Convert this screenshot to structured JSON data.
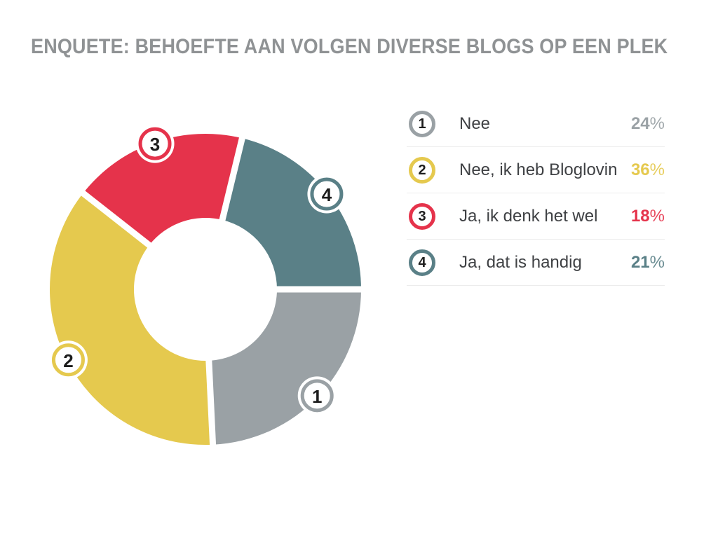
{
  "chart_data": {
    "type": "pie",
    "subtype": "donut",
    "title": "ENQUETE: BEHOEFTE AAN VOLGEN DIVERSE BLOGS OP EEN PLEK",
    "unit": "%",
    "percent_suffix": "%",
    "start_angle_deg": 0,
    "direction": "clockwise",
    "legend_position": "right",
    "hole_ratio": 0.46,
    "slices": [
      {
        "id": "1",
        "label": "Nee",
        "value": 24,
        "color": "#9AA1A5"
      },
      {
        "id": "2",
        "label": "Nee, ik heb Bloglovin",
        "value": 36,
        "color": "#E5C94E"
      },
      {
        "id": "3",
        "label": "Ja, ik denk het wel",
        "value": 18,
        "color": "#E5334B"
      },
      {
        "id": "4",
        "label": "Ja, dat is handig",
        "value": 21,
        "color": "#5A8087"
      }
    ]
  },
  "colors": {
    "background": "#FFFFFF",
    "title_text": "#8F9294",
    "legend_label_text": "#3F4144",
    "legend_divider": "#ECECEC",
    "badge_number": "#1C1C1C",
    "slice_gap": "#FFFFFF"
  }
}
